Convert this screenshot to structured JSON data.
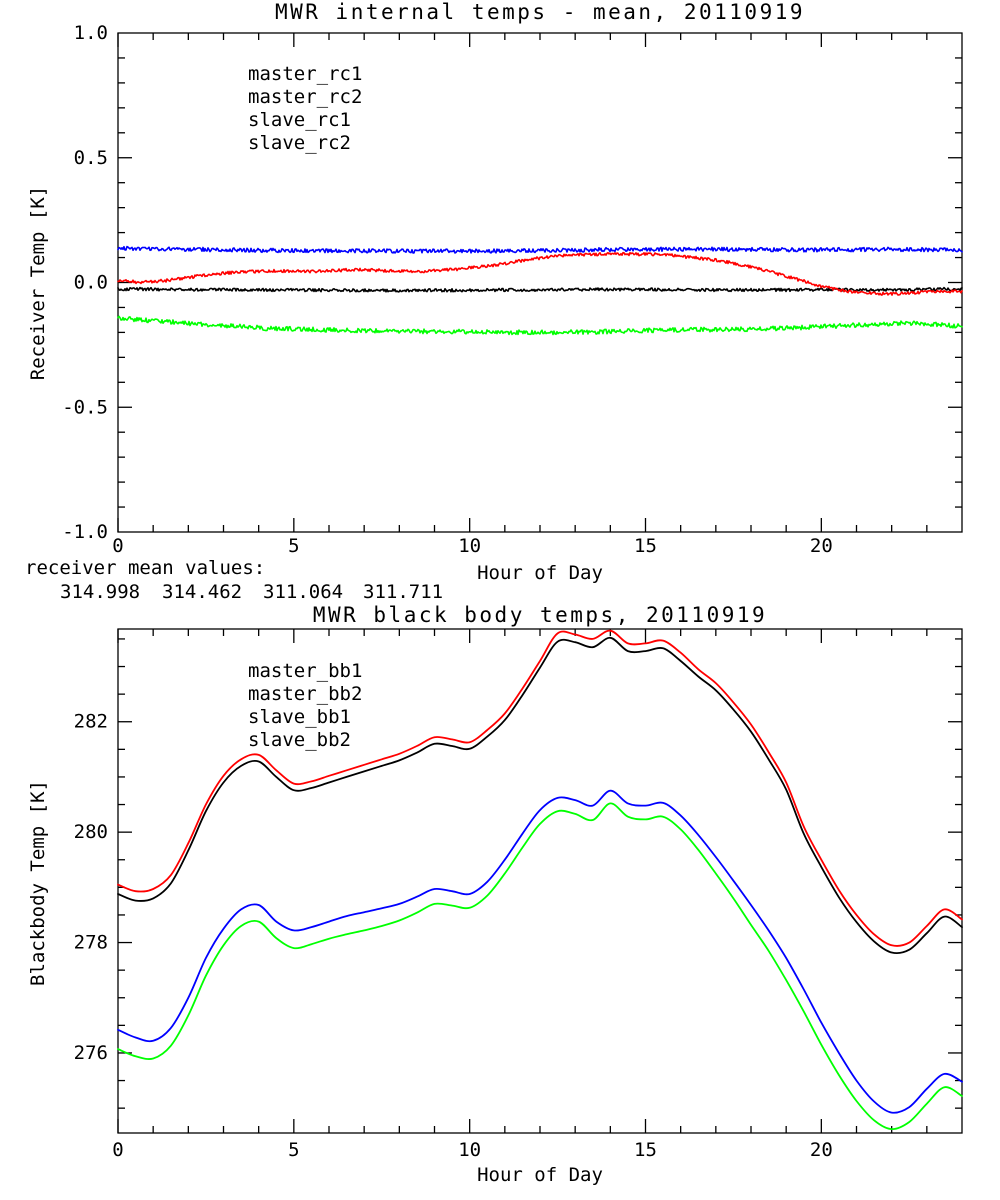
{
  "figure": {
    "background": "#ffffff"
  },
  "colors": {
    "black": "#000000",
    "red": "#ff0000",
    "blue": "#0000ff",
    "green": "#00ff00"
  },
  "mean_note": {
    "label": "receiver mean values:",
    "values": [
      {
        "text": "314.998",
        "color": "#000000"
      },
      {
        "text": "314.462",
        "color": "#ff0000"
      },
      {
        "text": "311.064",
        "color": "#0000ff"
      },
      {
        "text": "311.711",
        "color": "#00ff00"
      }
    ]
  },
  "chart_data": [
    {
      "type": "line",
      "title": "MWR internal temps - mean, 20110919",
      "xlabel": "Hour of Day",
      "ylabel": "Receiver Temp [K]",
      "xlim": [
        0,
        24
      ],
      "ylim": [
        -1.0,
        1.0
      ],
      "xticks": {
        "values": [
          0,
          5,
          10,
          15,
          20
        ],
        "labels": [
          "0",
          "5",
          "10",
          "15",
          "20"
        ],
        "minor_step": 1
      },
      "yticks": {
        "values": [
          -1.0,
          -0.5,
          0.0,
          0.5,
          1.0
        ],
        "labels": [
          "-1.0",
          "-0.5",
          "0.0",
          "0.5",
          "1.0"
        ],
        "minor_step": 0.1
      },
      "grid": false,
      "legend_position": "upper-left-inside",
      "series": [
        {
          "name": "master_rc1",
          "color": "#000000",
          "noise": 0.006,
          "x": [
            0,
            1,
            2,
            3,
            4,
            5,
            6,
            7,
            8,
            9,
            10,
            11,
            12,
            13,
            14,
            15,
            16,
            17,
            18,
            19,
            20,
            21,
            22,
            23,
            24
          ],
          "y": [
            -0.026,
            -0.027,
            -0.028,
            -0.029,
            -0.03,
            -0.03,
            -0.031,
            -0.031,
            -0.032,
            -0.031,
            -0.031,
            -0.03,
            -0.029,
            -0.028,
            -0.028,
            -0.028,
            -0.029,
            -0.03,
            -0.03,
            -0.03,
            -0.029,
            -0.029,
            -0.029,
            -0.027,
            -0.026
          ]
        },
        {
          "name": "master_rc2",
          "color": "#ff0000",
          "noise": 0.006,
          "x": [
            0,
            0.5,
            1,
            1.5,
            2,
            2.5,
            3,
            3.5,
            4,
            4.5,
            5,
            5.5,
            6,
            6.5,
            7,
            7.5,
            8,
            8.5,
            9,
            9.5,
            10,
            10.5,
            11,
            11.5,
            12,
            12.5,
            13,
            13.5,
            14,
            14.5,
            15,
            15.5,
            16,
            16.5,
            17,
            17.5,
            18,
            18.5,
            19,
            19.5,
            20,
            20.5,
            21,
            21.5,
            22,
            22.5,
            23,
            23.5,
            24
          ],
          "y": [
            0.01,
            0.002,
            0.003,
            0.01,
            0.02,
            0.03,
            0.037,
            0.042,
            0.045,
            0.047,
            0.045,
            0.044,
            0.047,
            0.05,
            0.051,
            0.048,
            0.045,
            0.044,
            0.047,
            0.052,
            0.058,
            0.066,
            0.076,
            0.088,
            0.098,
            0.106,
            0.111,
            0.113,
            0.115,
            0.114,
            0.113,
            0.113,
            0.105,
            0.098,
            0.09,
            0.078,
            0.062,
            0.045,
            0.025,
            0.005,
            -0.015,
            -0.03,
            -0.04,
            -0.044,
            -0.046,
            -0.043,
            -0.038,
            -0.036,
            -0.036
          ]
        },
        {
          "name": "slave_rc1",
          "color": "#0000ff",
          "noise": 0.008,
          "x": [
            0,
            1,
            2,
            3,
            4,
            5,
            6,
            7,
            8,
            9,
            10,
            11,
            12,
            13,
            14,
            15,
            16,
            17,
            18,
            19,
            20,
            21,
            22,
            23,
            24
          ],
          "y": [
            0.138,
            0.135,
            0.133,
            0.131,
            0.129,
            0.128,
            0.127,
            0.127,
            0.126,
            0.126,
            0.126,
            0.127,
            0.128,
            0.13,
            0.132,
            0.133,
            0.134,
            0.133,
            0.132,
            0.131,
            0.131,
            0.132,
            0.133,
            0.132,
            0.131
          ]
        },
        {
          "name": "slave_rc2",
          "color": "#00ff00",
          "noise": 0.009,
          "x": [
            0,
            0.5,
            1,
            1.5,
            2,
            2.5,
            3,
            3.5,
            4,
            4.15,
            4.3,
            5,
            5.5,
            6,
            7,
            8,
            9,
            10,
            11,
            12,
            13,
            14,
            15,
            16,
            17,
            18,
            19,
            20,
            21,
            22,
            22.5,
            23,
            23.5,
            24
          ],
          "y": [
            -0.143,
            -0.148,
            -0.153,
            -0.158,
            -0.164,
            -0.169,
            -0.173,
            -0.176,
            -0.179,
            -0.191,
            -0.183,
            -0.186,
            -0.188,
            -0.19,
            -0.192,
            -0.195,
            -0.196,
            -0.197,
            -0.199,
            -0.2,
            -0.199,
            -0.196,
            -0.192,
            -0.19,
            -0.189,
            -0.187,
            -0.183,
            -0.177,
            -0.171,
            -0.164,
            -0.163,
            -0.166,
            -0.171,
            -0.175
          ]
        }
      ]
    },
    {
      "type": "line",
      "title": "MWR black body temps, 20110919",
      "xlabel": "Hour of Day",
      "ylabel": "Blackbody Temp [K]",
      "xlim": [
        0,
        24
      ],
      "ylim": [
        274.55,
        283.68
      ],
      "xticks": {
        "values": [
          0,
          5,
          10,
          15,
          20
        ],
        "labels": [
          "0",
          "5",
          "10",
          "15",
          "20"
        ],
        "minor_step": 1
      },
      "yticks": {
        "values": [
          276,
          278,
          280,
          282
        ],
        "labels": [
          "276",
          "278",
          "280",
          "282"
        ],
        "minor_step": 0.5
      },
      "grid": false,
      "legend_position": "upper-left-inside",
      "series": [
        {
          "name": "master_bb1",
          "color": "#000000",
          "noise": 0,
          "x": [
            0,
            0.5,
            1,
            1.5,
            2,
            2.5,
            3,
            3.5,
            4,
            4.5,
            5,
            5.5,
            6,
            6.5,
            7,
            7.5,
            8,
            8.5,
            9,
            9.5,
            10,
            10.5,
            11,
            11.5,
            12,
            12.5,
            13,
            13.5,
            14,
            14.5,
            15,
            15.5,
            16,
            16.5,
            17,
            17.5,
            18,
            18.5,
            19,
            19.5,
            20,
            20.5,
            21,
            21.5,
            22,
            22.5,
            23,
            23.5,
            24
          ],
          "y": [
            278.88,
            278.76,
            278.8,
            279.07,
            279.67,
            280.38,
            280.9,
            281.2,
            281.28,
            281.0,
            280.76,
            280.8,
            280.9,
            281.0,
            281.1,
            281.2,
            281.3,
            281.44,
            281.6,
            281.56,
            281.51,
            281.73,
            282.03,
            282.48,
            282.98,
            283.45,
            283.44,
            283.35,
            283.52,
            283.28,
            283.28,
            283.33,
            283.1,
            282.82,
            282.57,
            282.22,
            281.82,
            281.32,
            280.77,
            279.97,
            279.37,
            278.82,
            278.37,
            278.02,
            277.82,
            277.87,
            278.17,
            278.47,
            278.28
          ]
        },
        {
          "name": "master_bb2",
          "color": "#ff0000",
          "noise": 0,
          "x": [
            0,
            0.5,
            1,
            1.5,
            2,
            2.5,
            3,
            3.5,
            4,
            4.5,
            5,
            5.5,
            6,
            6.5,
            7,
            7.5,
            8,
            8.5,
            9,
            9.5,
            10,
            10.5,
            11,
            11.5,
            12,
            12.5,
            13,
            13.5,
            14,
            14.5,
            15,
            15.5,
            16,
            16.5,
            17,
            17.5,
            18,
            18.5,
            19,
            19.5,
            20,
            20.5,
            21,
            21.5,
            22,
            22.5,
            23,
            23.5,
            24
          ],
          "y": [
            279.05,
            278.93,
            278.97,
            279.22,
            279.8,
            280.5,
            281.02,
            281.32,
            281.4,
            281.12,
            280.88,
            280.92,
            281.02,
            281.12,
            281.22,
            281.32,
            281.42,
            281.56,
            281.72,
            281.68,
            281.63,
            281.85,
            282.15,
            282.6,
            283.1,
            283.6,
            283.58,
            283.5,
            283.65,
            283.42,
            283.42,
            283.47,
            283.25,
            282.95,
            282.7,
            282.35,
            281.95,
            281.45,
            280.9,
            280.1,
            279.5,
            278.95,
            278.5,
            278.15,
            277.95,
            278.0,
            278.3,
            278.6,
            278.42
          ]
        },
        {
          "name": "slave_bb1",
          "color": "#0000ff",
          "noise": 0,
          "x": [
            0,
            0.5,
            1,
            1.5,
            2,
            2.5,
            3,
            3.5,
            4,
            4.5,
            5,
            5.5,
            6,
            6.5,
            7,
            7.5,
            8,
            8.5,
            9,
            9.5,
            10,
            10.5,
            11,
            11.5,
            12,
            12.5,
            13,
            13.5,
            14,
            14.5,
            15,
            15.5,
            16,
            16.5,
            17,
            17.5,
            18,
            18.5,
            19,
            19.5,
            20,
            20.5,
            21,
            21.5,
            22,
            22.5,
            23,
            23.5,
            24
          ],
          "y": [
            276.42,
            276.28,
            276.22,
            276.45,
            277.0,
            277.72,
            278.25,
            278.6,
            278.68,
            278.38,
            278.22,
            278.28,
            278.38,
            278.48,
            278.55,
            278.62,
            278.7,
            278.83,
            278.97,
            278.93,
            278.88,
            279.1,
            279.5,
            279.97,
            280.4,
            280.62,
            280.58,
            280.48,
            280.75,
            280.52,
            280.48,
            280.53,
            280.3,
            279.95,
            279.55,
            279.12,
            278.68,
            278.22,
            277.72,
            277.15,
            276.55,
            276.0,
            275.5,
            275.12,
            274.92,
            275.02,
            275.35,
            275.62,
            275.48
          ]
        },
        {
          "name": "slave_bb2",
          "color": "#00ff00",
          "noise": 0,
          "x": [
            0,
            0.5,
            1,
            1.5,
            2,
            2.5,
            3,
            3.5,
            4,
            4.5,
            5,
            5.5,
            6,
            6.5,
            7,
            7.5,
            8,
            8.5,
            9,
            9.5,
            10,
            10.5,
            11,
            11.5,
            12,
            12.5,
            13,
            13.5,
            14,
            14.5,
            15,
            15.5,
            16,
            16.5,
            17,
            17.5,
            18,
            18.5,
            19,
            19.5,
            20,
            20.5,
            21,
            21.5,
            22,
            22.5,
            23,
            23.5,
            24
          ],
          "y": [
            276.07,
            275.94,
            275.9,
            276.13,
            276.68,
            277.4,
            277.95,
            278.3,
            278.38,
            278.08,
            277.9,
            277.97,
            278.07,
            278.15,
            278.22,
            278.3,
            278.4,
            278.54,
            278.7,
            278.67,
            278.63,
            278.85,
            279.25,
            279.72,
            280.15,
            280.38,
            280.33,
            280.22,
            280.52,
            280.28,
            280.23,
            280.28,
            280.05,
            279.68,
            279.25,
            278.8,
            278.32,
            277.85,
            277.32,
            276.75,
            276.15,
            275.6,
            275.13,
            274.78,
            274.62,
            274.75,
            275.08,
            275.38,
            275.22
          ]
        }
      ]
    }
  ]
}
